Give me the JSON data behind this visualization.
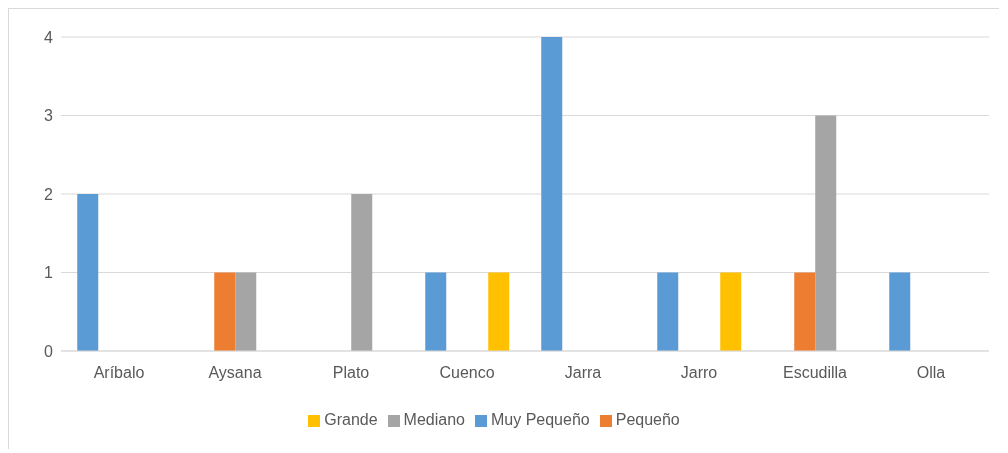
{
  "chart_data": {
    "type": "bar",
    "categories": [
      "Aríbalo",
      "Aysana",
      "Plato",
      "Cuenco",
      "Jarra",
      "Jarro",
      "Escudilla",
      "Olla"
    ],
    "series": [
      {
        "name": "Muy Pequeño",
        "color": "#5b9bd5",
        "values": [
          2,
          0,
          0,
          1,
          4,
          1,
          0,
          1
        ]
      },
      {
        "name": "Pequeño",
        "color": "#ed7d31",
        "values": [
          0,
          1,
          0,
          0,
          0,
          0,
          1,
          0
        ]
      },
      {
        "name": "Mediano",
        "color": "#a5a5a5",
        "values": [
          0,
          1,
          2,
          0,
          0,
          0,
          3,
          0
        ]
      },
      {
        "name": "Grande",
        "color": "#ffc000",
        "values": [
          0,
          0,
          0,
          1,
          0,
          1,
          0,
          0
        ]
      }
    ],
    "ylim": [
      0,
      4
    ],
    "yticks": [
      0,
      1,
      2,
      3,
      4
    ],
    "grid": "y",
    "legend": "bottom"
  }
}
